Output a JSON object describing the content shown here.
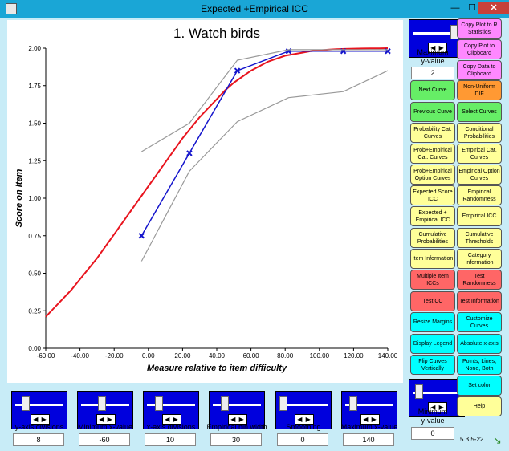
{
  "window": {
    "title": "Expected +Empirical ICC",
    "minimize": "—",
    "maximize": "☐",
    "close": "✕"
  },
  "chart_data": {
    "type": "line",
    "title": "1. Watch birds",
    "xlabel": "Measure relative to item difficulty",
    "ylabel": "Score on Item",
    "xlim": [
      -60,
      140
    ],
    "ylim": [
      0,
      2
    ],
    "xticks": [
      "-60.00",
      "-40.00",
      "-20.00",
      "0.00",
      "20.00",
      "40.00",
      "60.00",
      "80.00",
      "100.00",
      "120.00",
      "140.00"
    ],
    "yticks": [
      "0.00",
      "0.25",
      "0.50",
      "0.75",
      "1.00",
      "1.25",
      "1.50",
      "1.75",
      "2.00"
    ],
    "series": [
      {
        "role": "expected",
        "color": "#e8141e",
        "x": [
          -60,
          -55,
          -50,
          -45,
          -40,
          -35,
          -30,
          -25,
          -20,
          -15,
          -10,
          -5,
          0,
          5,
          10,
          15,
          20,
          25,
          30,
          35,
          40,
          45,
          50,
          55,
          60,
          65,
          70,
          75,
          80,
          85,
          90,
          95,
          100,
          105,
          110,
          115,
          120,
          125,
          130,
          135,
          140
        ],
        "y": [
          0.21,
          0.27,
          0.33,
          0.39,
          0.46,
          0.53,
          0.6,
          0.68,
          0.76,
          0.84,
          0.92,
          1.0,
          1.08,
          1.16,
          1.24,
          1.32,
          1.4,
          1.47,
          1.54,
          1.6,
          1.66,
          1.72,
          1.77,
          1.81,
          1.85,
          1.88,
          1.91,
          1.93,
          1.95,
          1.96,
          1.97,
          1.98,
          1.985,
          1.99,
          1.993,
          1.995,
          1.997,
          1.998,
          1.999,
          1.999,
          2.0
        ]
      },
      {
        "role": "empirical",
        "color": "#1515cc",
        "x": [
          -4,
          24,
          52,
          82,
          114,
          140
        ],
        "y": [
          0.75,
          1.3,
          1.85,
          1.98,
          1.98,
          1.98
        ]
      },
      {
        "role": "upper-ci",
        "color": "#999999",
        "x": [
          -4,
          24,
          52,
          82,
          114,
          140
        ],
        "y": [
          1.31,
          1.5,
          1.92,
          1.99,
          1.99,
          1.99
        ]
      },
      {
        "role": "lower-ci",
        "color": "#999999",
        "x": [
          -4,
          24,
          52,
          82,
          114,
          140
        ],
        "y": [
          0.58,
          1.18,
          1.51,
          1.67,
          1.71,
          1.85
        ]
      }
    ]
  },
  "bottom_controls": [
    {
      "label": "y-axis divisions",
      "value": "8",
      "thumb": 0.15
    },
    {
      "label": "Minimum x-value",
      "value": "-60",
      "thumb": 0.4
    },
    {
      "label": "x-axis divisions",
      "value": "10",
      "thumb": 0.2
    },
    {
      "label": "Empirical bin width",
      "value": "30",
      "thumb": 0.2
    },
    {
      "label": "Smoothing",
      "value": "0",
      "thumb": 0.0
    },
    {
      "label": "Maximum x-value",
      "value": "140",
      "thumb": 0.1
    }
  ],
  "right_controls": {
    "max_y": {
      "label": "Maximum\ny-value",
      "value": "2",
      "thumb": 0.9
    },
    "min_y": {
      "label": "Minimum\ny-value",
      "value": "0",
      "thumb": 0.05
    }
  },
  "side_buttons": {
    "copy_plot_r": "Copy Plot to R Statistics",
    "copy_plot_clip": "Copy Plot to Clipboard",
    "copy_data_clip": "Copy Data to Clipboard",
    "next_curve": "Next Curve",
    "non_uniform_dif": "Non-Uniform DIF",
    "previous_curve": "Previous Curve",
    "select_curves": "Select Curves",
    "prob_cat_curves": "Probability Cat. Curves",
    "conditional_prob": "Conditional Probabilities",
    "prob_emp_cat": "Prob+Empirical Cat. Curves",
    "emp_cat_curves": "Empirical Cat. Curves",
    "prob_emp_option": "Prob+Empirical Option Curves",
    "emp_option_curves": "Empirical Option Curves",
    "expected_score_icc": "Expected Score ICC",
    "emp_randomness": "Empirical Randomness",
    "expected_emp_icc": "Expected + Empirical ICC",
    "empirical_icc": "Empirical ICC",
    "cumulative_prob": "Cumulative Probabilities",
    "cumulative_thresholds": "Cumulative Thresholds",
    "item_information": "Item Information",
    "category_information": "Category Information",
    "multiple_item_iccs": "Multiple Item ICCs",
    "test_randomness": "Test Randomness",
    "test_cc": "Test CC",
    "test_information": "Test Information",
    "resize_margins": "Resize Margins",
    "customize_curves": "Customize Curves",
    "display_legend": "Display Legend",
    "absolute_x_axis": "Absolute x-axis",
    "flip_curves": "Flip Curves Vertically",
    "points_lines": "Points, Lines, None, Both",
    "set_color": "Set color",
    "help": "Help"
  },
  "version": "5.3.5-22",
  "icons": {
    "resize_grip": "↘",
    "spin_arrows": "◀ ▶"
  }
}
